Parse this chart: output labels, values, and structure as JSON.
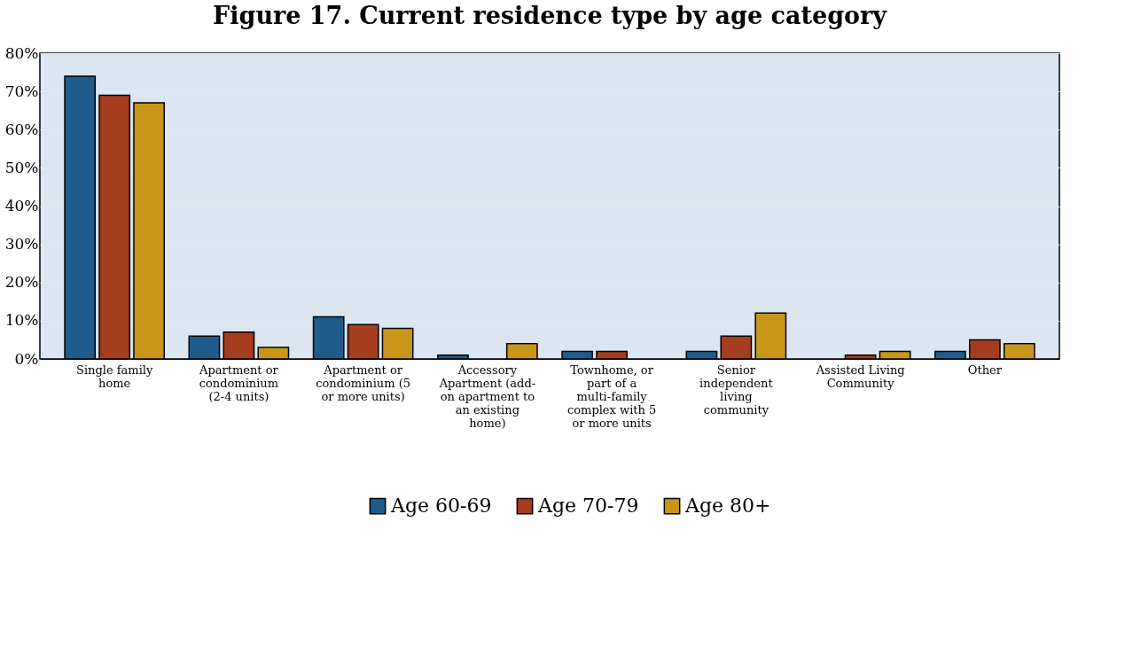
{
  "chart_data": {
    "type": "bar",
    "title": "Figure 17. Current residence type by age category",
    "categories": [
      "Single family home",
      "Apartment or condominium (2-4 units)",
      "Apartment or condominium (5 or more units)",
      "Accessory Apartment (add-on apartment to an existing home)",
      "Townhome, or part of a multi-family complex with 5 or more units",
      "Senior independent living community",
      "Assisted Living Community",
      "Other"
    ],
    "series": [
      {
        "name": "Age 60-69",
        "color": "#1f5c8b",
        "values": [
          74,
          6,
          11,
          1,
          2,
          2,
          null,
          2
        ]
      },
      {
        "name": "Age 70-79",
        "color": "#a63c1e",
        "values": [
          69,
          7,
          9,
          null,
          2,
          6,
          1,
          5
        ]
      },
      {
        "name": "Age 80+",
        "color": "#c9961a",
        "values": [
          67,
          3,
          8,
          4,
          null,
          12,
          2,
          4
        ]
      }
    ],
    "ylim": [
      0,
      80
    ],
    "yticks": [
      {
        "value": 0,
        "label": "0%"
      },
      {
        "value": 10,
        "label": "10%"
      },
      {
        "value": 20,
        "label": "20%"
      },
      {
        "value": 30,
        "label": "30%"
      },
      {
        "value": 40,
        "label": "40%"
      },
      {
        "value": 50,
        "label": "50%"
      },
      {
        "value": 60,
        "label": "60%"
      },
      {
        "value": 70,
        "label": "70%"
      },
      {
        "value": 80,
        "label": "80%"
      }
    ],
    "grid": "y",
    "legend": "bottom"
  }
}
